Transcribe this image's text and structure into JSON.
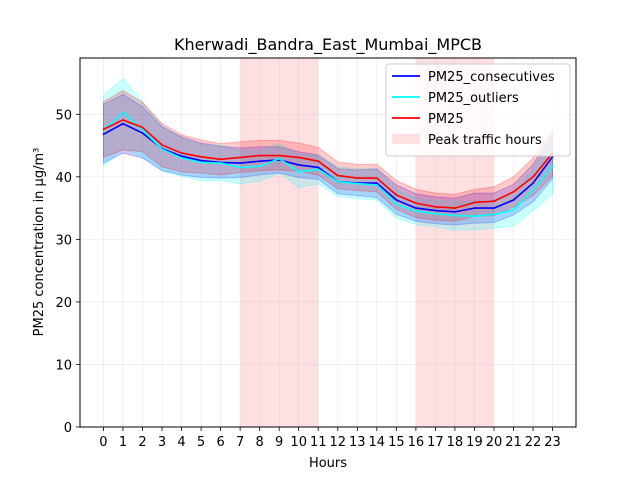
{
  "chart_data": {
    "type": "line",
    "title": "Kherwadi_Bandra_East_Mumbai_MPCB",
    "xlabel": "Hours",
    "ylabel": "PM25 concentration in µg/m³",
    "x": [
      0,
      1,
      2,
      3,
      4,
      5,
      6,
      7,
      8,
      9,
      10,
      11,
      12,
      13,
      14,
      15,
      16,
      17,
      18,
      19,
      20,
      21,
      22,
      23
    ],
    "xlim": [
      -1.2,
      24.2
    ],
    "ylim": [
      0,
      59
    ],
    "yticks": [
      0,
      10,
      20,
      30,
      40,
      50
    ],
    "grid": true,
    "legend_position": "top-right",
    "shaded_regions": [
      {
        "name": "Peak traffic hours",
        "x_start": 7,
        "x_end": 11,
        "color": "#ffcccf"
      },
      {
        "name": "Peak traffic hours",
        "x_start": 16,
        "x_end": 20,
        "color": "#ffcccf"
      }
    ],
    "series": [
      {
        "name": "PM25_consecutives",
        "color": "#0000ff",
        "values": [
          46.8,
          48.5,
          47.0,
          44.5,
          43.3,
          42.6,
          42.3,
          42.2,
          42.5,
          42.7,
          41.9,
          41.5,
          39.2,
          39.0,
          39.0,
          36.3,
          35.0,
          34.6,
          34.4,
          35.0,
          35.0,
          36.3,
          39.0,
          43.2
        ],
        "lower": [
          42.2,
          43.8,
          43.0,
          41.0,
          40.3,
          39.9,
          39.8,
          39.9,
          40.3,
          40.6,
          39.9,
          39.6,
          37.3,
          37.0,
          36.7,
          34.0,
          32.9,
          32.5,
          32.3,
          32.6,
          32.7,
          33.9,
          36.0,
          39.7
        ],
        "upper": [
          51.6,
          53.2,
          51.2,
          48.0,
          46.4,
          45.4,
          44.9,
          44.6,
          44.8,
          44.8,
          44.0,
          43.5,
          41.3,
          41.1,
          41.3,
          38.7,
          37.3,
          36.8,
          36.6,
          37.4,
          37.4,
          38.8,
          42.0,
          46.8
        ]
      },
      {
        "name": "PM25_outliers",
        "color": "#00ffff",
        "values": [
          47.5,
          50.3,
          47.5,
          44.4,
          43.0,
          42.3,
          42.2,
          41.5,
          41.7,
          42.9,
          40.8,
          41.2,
          39.2,
          38.9,
          38.7,
          35.6,
          34.5,
          34.1,
          33.8,
          33.7,
          34.0,
          34.7,
          38.0,
          41.8
        ],
        "lower": [
          41.7,
          44.6,
          43.2,
          40.9,
          40.1,
          39.4,
          39.4,
          38.9,
          39.3,
          40.6,
          38.3,
          38.9,
          36.9,
          36.5,
          36.3,
          33.4,
          32.4,
          32.0,
          31.5,
          31.5,
          31.8,
          32.1,
          34.6,
          37.3
        ],
        "upper": [
          53.1,
          55.7,
          52.0,
          48.1,
          46.2,
          45.2,
          45.0,
          44.1,
          44.2,
          45.3,
          43.6,
          43.5,
          41.6,
          41.3,
          41.2,
          37.9,
          36.6,
          36.2,
          36.1,
          36.0,
          36.3,
          37.5,
          41.3,
          46.4
        ]
      },
      {
        "name": "PM25",
        "color": "#ff0000",
        "values": [
          47.6,
          49.1,
          47.9,
          45.1,
          43.8,
          43.2,
          42.8,
          43.1,
          43.4,
          43.4,
          43.1,
          42.5,
          40.2,
          39.8,
          39.8,
          37.1,
          35.8,
          35.2,
          35.0,
          35.9,
          36.1,
          37.6,
          40.0,
          43.8
        ],
        "lower": [
          43.1,
          44.3,
          44.0,
          41.6,
          40.8,
          40.6,
          40.3,
          40.7,
          41.0,
          41.1,
          40.9,
          40.3,
          38.1,
          37.8,
          37.6,
          34.8,
          33.5,
          33.1,
          32.9,
          33.7,
          33.8,
          35.2,
          37.0,
          40.1
        ],
        "upper": [
          52.0,
          53.8,
          51.9,
          48.5,
          46.7,
          45.9,
          45.3,
          45.6,
          45.8,
          45.8,
          45.4,
          44.7,
          42.4,
          42.0,
          42.0,
          39.4,
          38.0,
          37.4,
          37.2,
          38.0,
          38.4,
          40.0,
          43.0,
          47.5
        ]
      }
    ],
    "legend": [
      {
        "label": "PM25_consecutives",
        "kind": "line",
        "color": "#0000ff"
      },
      {
        "label": "PM25_outliers",
        "kind": "line",
        "color": "#00ffff"
      },
      {
        "label": "PM25",
        "kind": "line",
        "color": "#ff0000"
      },
      {
        "label": "Peak traffic hours",
        "kind": "patch",
        "color": "#ffcccf"
      }
    ]
  }
}
